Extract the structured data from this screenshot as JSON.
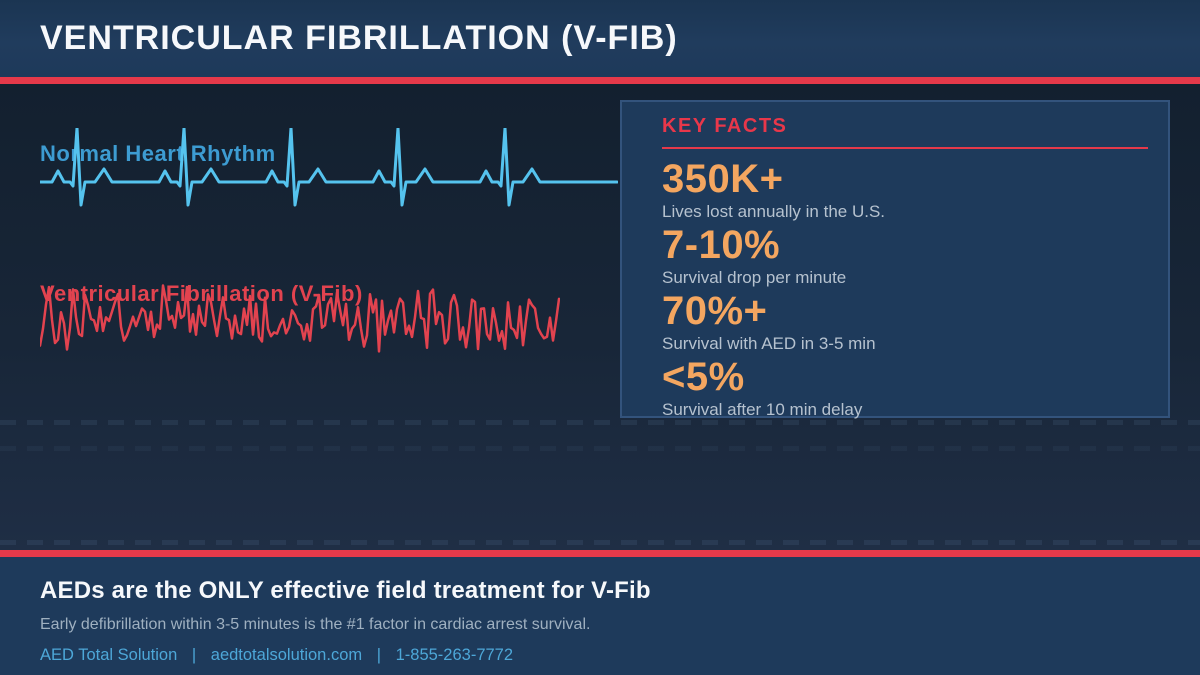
{
  "header": {
    "title": "VENTRICULAR FIBRILLATION (V-FIB)"
  },
  "theme": {
    "accent_red": "#e5394a",
    "stat_orange": "#f4a660",
    "normal_trace_cyan": "#55c3ee",
    "vfib_trace_red": "#e2434f",
    "panel_navy": "#1e3a5b",
    "caption_gray": "#b6c2cf",
    "contact_blue": "#4da7d8"
  },
  "waveforms": {
    "normal": {
      "label": "Normal Heart Rhythm"
    },
    "vfib": {
      "label": "Ventricular Fibrillation (V-Fib)"
    }
  },
  "key_facts": {
    "title": "KEY FACTS",
    "stats": [
      {
        "value": "350K+",
        "caption": "Lives lost annually in the U.S."
      },
      {
        "value": "7-10%",
        "caption": "Survival drop per minute"
      },
      {
        "value": "70%+",
        "caption": "Survival with AED in 3-5 min"
      },
      {
        "value": "<5%",
        "caption": "Survival after 10 min delay"
      }
    ]
  },
  "footer": {
    "headline": "AEDs are the ONLY effective field treatment for V-Fib",
    "subline": "Early defibrillation within 3-5 minutes is the #1 factor in cardiac arrest survival.",
    "contact": {
      "company": "AED Total Solution",
      "website": "aedtotalsolution.com",
      "phone": "1-855-263-7772",
      "divider": "|"
    }
  }
}
